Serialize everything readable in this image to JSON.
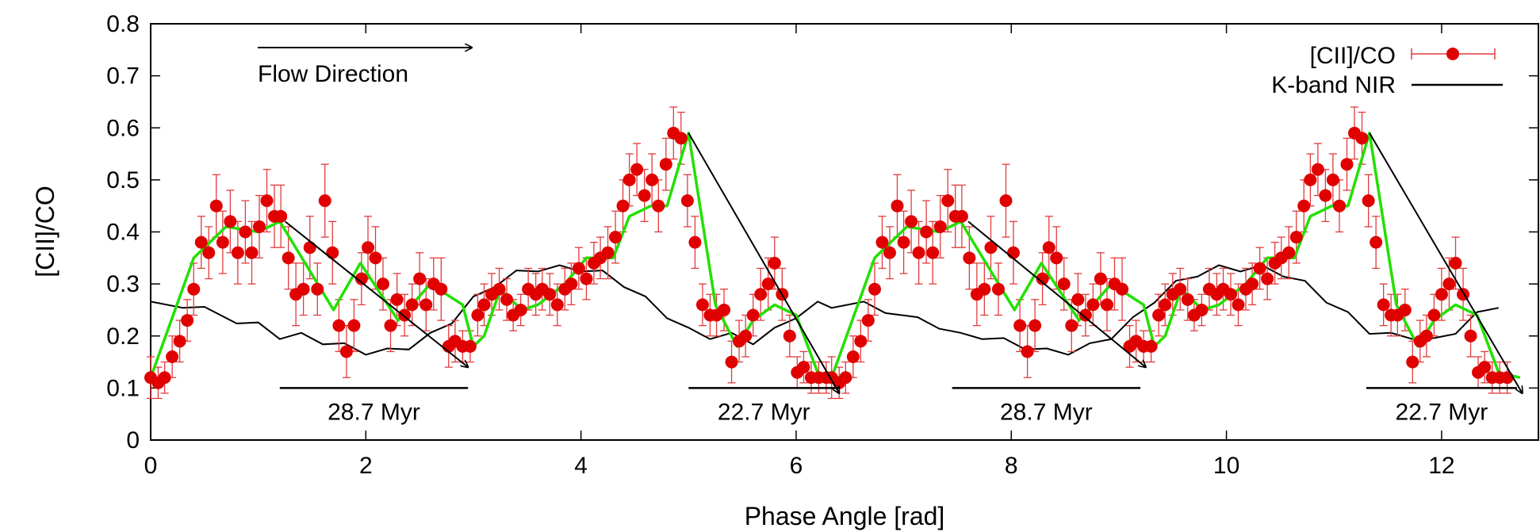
{
  "chart_data": {
    "type": "scatter",
    "xlabel": "Phase Angle  [rad]",
    "ylabel": "[CII]/CO",
    "xlim": [
      0,
      12.9
    ],
    "ylim": [
      0,
      0.8
    ],
    "xticks": [
      0,
      2,
      4,
      6,
      8,
      10,
      12
    ],
    "yticks": [
      0,
      0.1,
      0.2,
      0.3,
      0.4,
      0.5,
      0.6,
      0.7,
      0.8
    ],
    "grid": false,
    "legend": {
      "placement": "top-right",
      "entries": [
        {
          "label": "[CII]/CO",
          "style": "points-with-errorbars",
          "color": "#e00000"
        },
        {
          "label": "K-band NIR",
          "style": "line",
          "color": "#000000"
        }
      ]
    },
    "colors": {
      "points": "#e00000",
      "errorbars": "#e23b3b",
      "smooth": "#22e000",
      "nir": "#000000"
    },
    "series": [
      {
        "name": "[CII]/CO",
        "x": [
          0.0,
          0.07,
          0.13,
          0.2,
          0.27,
          0.34,
          0.4,
          0.47,
          0.54,
          0.61,
          0.67,
          0.74,
          0.81,
          0.88,
          0.94,
          1.01,
          1.08,
          1.15,
          1.21,
          1.28,
          1.35,
          1.42,
          1.48,
          1.55,
          1.62,
          1.69,
          1.75,
          1.82,
          1.89,
          1.96,
          2.02,
          2.09,
          2.16,
          2.23,
          2.29,
          2.36,
          2.43,
          2.5,
          2.56,
          2.63,
          2.7,
          2.77,
          2.83,
          2.9,
          2.97,
          3.04,
          3.1,
          3.17,
          3.24,
          3.31,
          3.37,
          3.44,
          3.51,
          3.58,
          3.64,
          3.71,
          3.78,
          3.85,
          3.91,
          3.98,
          4.05,
          4.12,
          4.18,
          4.25,
          4.32,
          4.39,
          4.45,
          4.52,
          4.59,
          4.66,
          4.72,
          4.79,
          4.86,
          4.93,
          4.99,
          5.06,
          5.13,
          5.2,
          5.26,
          5.33,
          5.4,
          5.47,
          5.53,
          5.6,
          5.67,
          5.74,
          5.8,
          5.87,
          5.94,
          6.01,
          6.07,
          6.14,
          6.21,
          6.28
        ],
        "y": [
          0.12,
          0.11,
          0.12,
          0.16,
          0.19,
          0.23,
          0.29,
          0.38,
          0.36,
          0.45,
          0.38,
          0.42,
          0.36,
          0.4,
          0.36,
          0.41,
          0.46,
          0.43,
          0.43,
          0.35,
          0.28,
          0.29,
          0.37,
          0.29,
          0.46,
          0.36,
          0.22,
          0.17,
          0.22,
          0.31,
          0.37,
          0.35,
          0.3,
          0.22,
          0.27,
          0.24,
          0.26,
          0.31,
          0.26,
          0.3,
          0.29,
          0.18,
          0.19,
          0.18,
          0.18,
          0.24,
          0.26,
          0.28,
          0.29,
          0.27,
          0.24,
          0.25,
          0.29,
          0.28,
          0.29,
          0.28,
          0.26,
          0.29,
          0.3,
          0.33,
          0.31,
          0.34,
          0.35,
          0.36,
          0.39,
          0.45,
          0.5,
          0.52,
          0.47,
          0.5,
          0.45,
          0.53,
          0.59,
          0.58,
          0.46,
          0.38,
          0.26,
          0.24,
          0.24,
          0.25,
          0.15,
          0.19,
          0.2,
          0.24,
          0.28,
          0.3,
          0.34,
          0.28,
          0.2,
          0.13,
          0.14,
          0.12,
          0.12,
          0.12
        ],
        "yerr": [
          0.04,
          0.03,
          0.03,
          0.04,
          0.04,
          0.04,
          0.05,
          0.05,
          0.05,
          0.06,
          0.06,
          0.06,
          0.06,
          0.06,
          0.06,
          0.06,
          0.06,
          0.06,
          0.06,
          0.06,
          0.06,
          0.05,
          0.06,
          0.05,
          0.07,
          0.06,
          0.05,
          0.05,
          0.05,
          0.05,
          0.06,
          0.06,
          0.05,
          0.05,
          0.05,
          0.04,
          0.04,
          0.05,
          0.05,
          0.05,
          0.06,
          0.04,
          0.04,
          0.03,
          0.03,
          0.04,
          0.04,
          0.04,
          0.04,
          0.04,
          0.03,
          0.03,
          0.04,
          0.04,
          0.04,
          0.04,
          0.04,
          0.04,
          0.04,
          0.04,
          0.04,
          0.04,
          0.04,
          0.05,
          0.05,
          0.05,
          0.05,
          0.05,
          0.05,
          0.05,
          0.05,
          0.05,
          0.05,
          0.05,
          0.05,
          0.05,
          0.04,
          0.04,
          0.04,
          0.04,
          0.04,
          0.04,
          0.04,
          0.04,
          0.05,
          0.05,
          0.05,
          0.05,
          0.04,
          0.03,
          0.03,
          0.03,
          0.03,
          0.03
        ]
      },
      {
        "name": "",
        "style": "smoothed",
        "x": [
          0.0,
          0.4,
          0.7,
          1.0,
          1.2,
          1.7,
          1.95,
          2.3,
          2.6,
          2.9,
          3.0,
          3.1,
          3.25,
          3.45,
          3.6,
          3.85,
          4.05,
          4.3,
          4.45,
          4.65,
          4.8,
          5.0,
          5.25,
          5.45,
          5.6,
          5.8,
          6.0,
          6.2,
          6.4
        ],
        "y": [
          0.12,
          0.35,
          0.41,
          0.4,
          0.42,
          0.25,
          0.34,
          0.23,
          0.3,
          0.26,
          0.18,
          0.2,
          0.29,
          0.25,
          0.26,
          0.3,
          0.35,
          0.35,
          0.43,
          0.45,
          0.45,
          0.59,
          0.26,
          0.18,
          0.23,
          0.26,
          0.24,
          0.13,
          0.12
        ]
      },
      {
        "name": "K-band NIR",
        "x": [
          0.0,
          0.3,
          0.5,
          0.8,
          1.0,
          1.2,
          1.4,
          1.6,
          1.8,
          2.0,
          2.2,
          2.4,
          2.6,
          2.8,
          3.0,
          3.2,
          3.4,
          3.6,
          3.8,
          4.0,
          4.2,
          4.4,
          4.6,
          4.8,
          5.0,
          5.2,
          5.4,
          5.6,
          5.8,
          6.0,
          6.2
        ],
        "y": [
          0.26,
          0.26,
          0.25,
          0.23,
          0.22,
          0.2,
          0.2,
          0.19,
          0.18,
          0.17,
          0.17,
          0.18,
          0.2,
          0.23,
          0.27,
          0.3,
          0.32,
          0.33,
          0.33,
          0.33,
          0.32,
          0.3,
          0.27,
          0.24,
          0.21,
          0.2,
          0.2,
          0.19,
          0.21,
          0.24,
          0.26
        ]
      }
    ],
    "repeat_period": 6.33,
    "annotations": {
      "flow_direction": {
        "label": "Flow Direction"
      },
      "arrows": [
        {
          "from": [
            1.25,
            0.42
          ],
          "to": [
            2.95,
            0.14
          ]
        },
        {
          "from": [
            5.0,
            0.59
          ],
          "to": [
            6.4,
            0.09
          ]
        },
        {
          "from": [
            7.6,
            0.42
          ],
          "to": [
            9.25,
            0.14
          ]
        },
        {
          "from": [
            11.33,
            0.59
          ],
          "to": [
            12.75,
            0.09
          ]
        }
      ],
      "timescales": [
        {
          "label": "28.7 Myr",
          "x_start": 1.2,
          "x_end": 2.95,
          "y": 0.1
        },
        {
          "label": "22.7 Myr",
          "x_start": 5.0,
          "x_end": 6.4,
          "y": 0.1
        },
        {
          "label": "28.7 Myr",
          "x_start": 7.45,
          "x_end": 9.2,
          "y": 0.1
        },
        {
          "label": "22.7 Myr",
          "x_start": 11.3,
          "x_end": 12.7,
          "y": 0.1
        }
      ]
    }
  }
}
